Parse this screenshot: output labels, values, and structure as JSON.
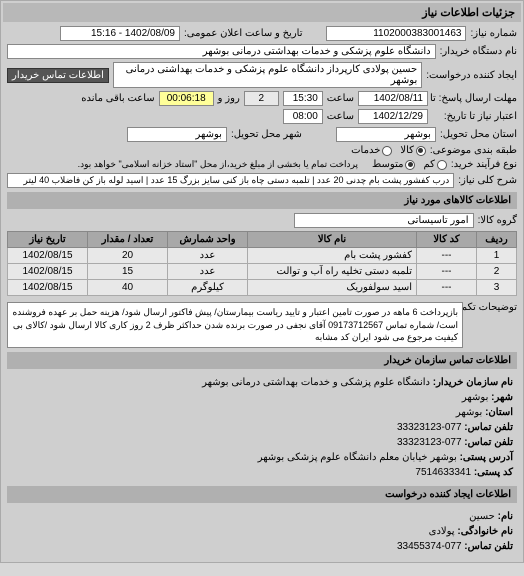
{
  "title_bar": "جزئیات اطلاعات نیاز",
  "top": {
    "number_label": "شماره نیاز:",
    "number_value": "1102000383001463",
    "pubdate_label": "تاریخ و ساعت اعلان عمومی:",
    "pubdate_value": "1402/08/09 - 15:16",
    "buyer_label": "نام دستگاه خریدار:",
    "buyer_value": "دانشگاه علوم پزشکی و خدمات بهداشتی درمانی بوشهر",
    "requester_label": "ایجاد کننده درخواست:",
    "requester_value": "حسین پولادی کارپرداز دانشگاه علوم پزشکی و خدمات بهداشتی درمانی بوشهر",
    "contact_btn": "اطلاعات تماس خریدار"
  },
  "deadline": {
    "send_label": "مهلت ارسال پاسخ: تا تاریخ:",
    "send_date": "1402/08/11",
    "time_label": "ساعت",
    "send_time": "15:30",
    "days_field": "2",
    "days_label": "روز و",
    "counter": "00:06:18",
    "remain_label": "ساعت باقی مانده",
    "valid_label": "اعتبار نیاز تا تاریخ:",
    "valid_date": "1402/12/29",
    "valid_time": "08:00"
  },
  "location": {
    "province_label": "استان محل تحویل:",
    "province_value": "بوشهر",
    "city_label": "شهر محل تحویل:",
    "city_value": "بوشهر"
  },
  "radios": {
    "category_label": "طبقه بندی موضوعی:",
    "opt_kala": "کالا",
    "opt_khadamat": "خدمات",
    "process_label": "نوع فرآیند خرید:",
    "opt_low": "کم",
    "opt_mid": "متوسط",
    "process_note": "پرداخت تمام یا بخشی از مبلغ خرید،از محل \"استاد خزانه اسلامی\" خواهد بود."
  },
  "need": {
    "title_label": "شرح کلی نیاز:",
    "title_value": "درب کفشور پشت بام چدنی 20 عدد | تلمبه دستی چاه باز کنی سایز بزرگ 15 عدد | اسید لوله باز کن فاضلاب 40 لیتر"
  },
  "goods_section": "اطلاعات کالاهای مورد نیاز",
  "group": {
    "label": "گروه کالا:",
    "value": "امور تاسیساتی"
  },
  "table": {
    "headers": [
      "ردیف",
      "کد کالا",
      "نام کالا",
      "واحد شمارش",
      "تعداد / مقدار",
      "تاریخ نیاز"
    ],
    "rows": [
      [
        "1",
        "---",
        "کفشور پشت بام",
        "عدد",
        "20",
        "1402/08/15"
      ],
      [
        "2",
        "---",
        "تلمبه دستی تخلیه راه آب و توالت",
        "عدد",
        "15",
        "1402/08/15"
      ],
      [
        "3",
        "---",
        "اسید سولفوریک",
        "کیلوگرم",
        "40",
        "1402/08/15"
      ]
    ],
    "col_widths": [
      "40px",
      "60px",
      "auto",
      "80px",
      "80px",
      "80px"
    ]
  },
  "notes": {
    "label": "توضیحات تکمیلی:",
    "text": "بازپرداخت 6 ماهه در صورت تامین اعتبار و تایید ریاست بیمارستان/ پیش فاکتور ارسال شود/ هزینه حمل بر عهده فروشنده است/ شماره تماس 09173712567 آقای نجفی در صورت برنده شدن حداکثر ظرف 2 روز کاری کالا ارسال شود /کالای بی کیفیت مرجوع می شود ایران کد مشابه"
  },
  "org_contact": {
    "header": "اطلاعات تماس سازمان خریدار",
    "name_label": "نام سازمان خریدار:",
    "name_value": "دانشگاه علوم پزشکی و خدمات بهداشتی درمانی بوشهر",
    "city_label": "شهر:",
    "city_value": "بوشهر",
    "prov_label": "استان:",
    "prov_value": "بوشهر",
    "phone_label": "تلفن تماس:",
    "phone_value": "077-33323123",
    "fax_label": "تلفن تماس:",
    "fax_value": "077-33323123",
    "addr_label": "آدرس پستی:",
    "addr_value": "بوشهر خیابان معلم دانشگاه علوم پزشکی بوشهر",
    "post_label": "کد پستی:",
    "post_value": "7514633341"
  },
  "creator_contact": {
    "header": "اطلاعات ایجاد کننده درخواست",
    "fname_label": "نام:",
    "fname_value": "حسین",
    "lname_label": "نام خانوادگی:",
    "lname_value": "پولادی",
    "phone_label": "تلفن تماس:",
    "phone_value": "077-33455374"
  }
}
